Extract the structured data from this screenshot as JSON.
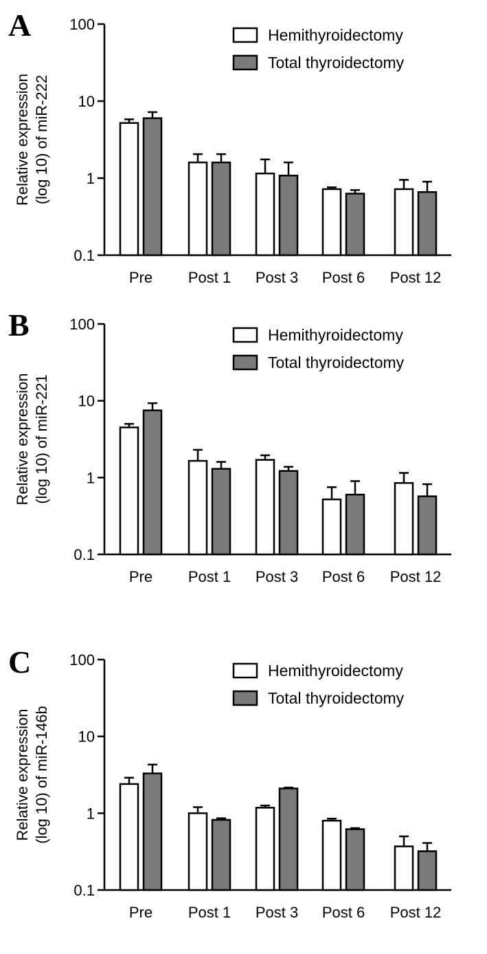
{
  "chart_data": [
    {
      "type": "bar",
      "panel_label": "A",
      "categories": [
        "Pre",
        "Post 1",
        "Post 3",
        "Post 6",
        "Post 12"
      ],
      "ylabel": [
        "Relative expression",
        "(log 10) of miR-222"
      ],
      "yscale": "log",
      "ylim": [
        0.1,
        100
      ],
      "yticks": [
        "0.1",
        "1",
        "10",
        "100"
      ],
      "legend_position": "top-right",
      "grid": false,
      "series": [
        {
          "name": "Hemithyroidectomy",
          "color": "#ffffff",
          "values": [
            5.2,
            1.6,
            1.15,
            0.72,
            0.72
          ],
          "errors": [
            5.8,
            2.05,
            1.75,
            0.76,
            0.95
          ]
        },
        {
          "name": "Total thyroidectomy",
          "color": "#7a7a7a",
          "values": [
            6.0,
            1.6,
            1.08,
            0.63,
            0.66
          ],
          "errors": [
            7.2,
            2.05,
            1.6,
            0.7,
            0.9
          ]
        }
      ]
    },
    {
      "type": "bar",
      "panel_label": "B",
      "categories": [
        "Pre",
        "Post 1",
        "Post 3",
        "Post 6",
        "Post 12"
      ],
      "ylabel": [
        "Relative expression",
        "(log 10) of miR-221"
      ],
      "yscale": "log",
      "ylim": [
        0.1,
        100
      ],
      "yticks": [
        "0.1",
        "1",
        "10",
        "100"
      ],
      "legend_position": "top-right",
      "grid": false,
      "series": [
        {
          "name": "Hemithyroidectomy",
          "color": "#ffffff",
          "values": [
            4.5,
            1.65,
            1.7,
            0.52,
            0.85
          ],
          "errors": [
            5.0,
            2.3,
            1.95,
            0.75,
            1.15
          ]
        },
        {
          "name": "Total thyroidectomy",
          "color": "#7a7a7a",
          "values": [
            7.5,
            1.3,
            1.22,
            0.6,
            0.57
          ],
          "errors": [
            9.3,
            1.6,
            1.38,
            0.9,
            0.82
          ]
        }
      ]
    },
    {
      "type": "bar",
      "panel_label": "C",
      "categories": [
        "Pre",
        "Post 1",
        "Post 3",
        "Post 6",
        "Post 12"
      ],
      "ylabel": [
        "Relative expression",
        "(log 10) of miR-146b"
      ],
      "yscale": "log",
      "ylim": [
        0.1,
        100
      ],
      "yticks": [
        "0.1",
        "1",
        "10",
        "100"
      ],
      "legend_position": "top-right",
      "grid": false,
      "series": [
        {
          "name": "Hemithyroidectomy",
          "color": "#ffffff",
          "values": [
            2.4,
            1.0,
            1.18,
            0.8,
            0.37
          ],
          "errors": [
            2.9,
            1.2,
            1.26,
            0.85,
            0.5
          ]
        },
        {
          "name": "Total thyroidectomy",
          "color": "#7a7a7a",
          "values": [
            3.3,
            0.82,
            2.1,
            0.62,
            0.32
          ],
          "errors": [
            4.3,
            0.86,
            2.16,
            0.64,
            0.41
          ]
        }
      ]
    }
  ]
}
